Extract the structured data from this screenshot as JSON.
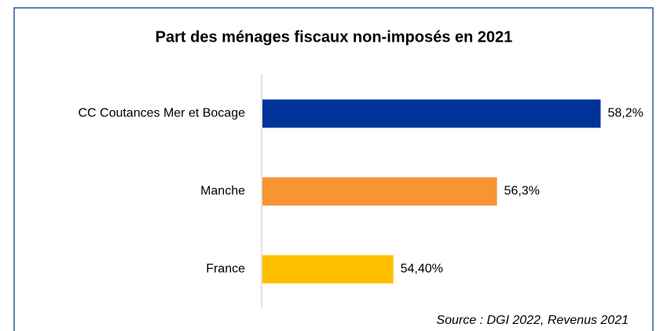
{
  "chart_data": {
    "type": "bar",
    "orientation": "horizontal",
    "title": "Part des ménages fiscaux non-imposés en 2021",
    "categories": [
      "CC Coutances Mer et Bocage",
      "Manche",
      "France"
    ],
    "values": [
      58.2,
      56.3,
      54.4
    ],
    "value_labels": [
      "58,2%",
      "56,3%",
      "54,40%"
    ],
    "colors": [
      "#003399",
      "#f79433",
      "#ffc000"
    ],
    "xlim": [
      52,
      59
    ],
    "source": "Source : DGI 2022, Revenus 2021"
  }
}
